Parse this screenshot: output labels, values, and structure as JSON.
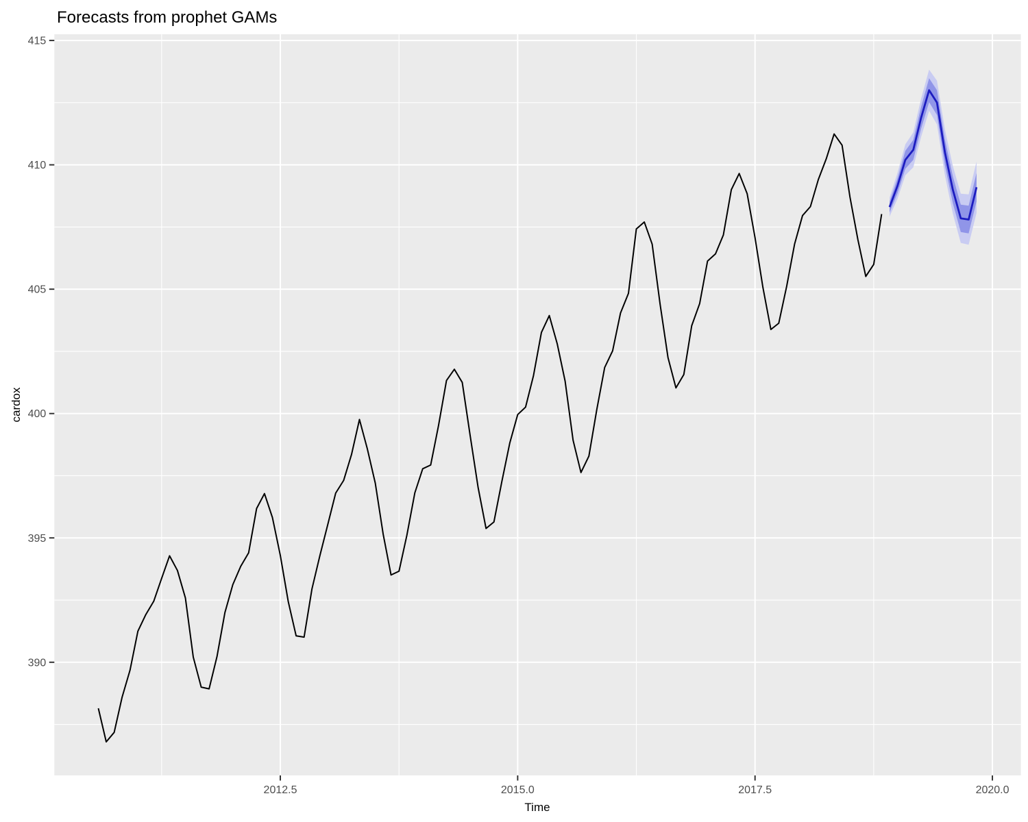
{
  "chart_data": {
    "type": "line",
    "title": "Forecasts from prophet GAMs",
    "xlabel": "Time",
    "ylabel": "cardox",
    "legend": "none",
    "grid": true,
    "xlim": [
      2010.12,
      2020.3
    ],
    "ylim": [
      385.45,
      415.25
    ],
    "x_ticks": {
      "values": [
        2012.5,
        2015.0,
        2017.5,
        2020.0
      ],
      "labels": [
        "2012.5",
        "2015.0",
        "2017.5",
        "2020.0"
      ],
      "minor": [
        2011.25,
        2013.75,
        2016.25,
        2018.75
      ]
    },
    "y_ticks": {
      "values": [
        390,
        395,
        400,
        405,
        410,
        415
      ],
      "labels": [
        "390",
        "395",
        "400",
        "405",
        "410",
        "415"
      ],
      "minor": [
        387.5,
        392.5,
        397.5,
        402.5,
        407.5,
        412.5
      ]
    },
    "series": [
      {
        "name": "observed",
        "kind": "line",
        "start_year": 2010,
        "start_month": 8,
        "frequency": 12,
        "values": [
          388.15,
          386.8,
          387.18,
          388.59,
          389.68,
          391.25,
          391.92,
          392.45,
          393.37,
          394.28,
          393.69,
          392.59,
          390.21,
          389.0,
          388.93,
          390.24,
          392.0,
          393.12,
          393.86,
          394.4,
          396.18,
          396.78,
          395.82,
          394.3,
          392.44,
          391.06,
          391.01,
          392.95,
          394.28,
          395.54,
          396.8,
          397.31,
          398.35,
          399.76,
          398.58,
          397.2,
          395.15,
          393.51,
          393.66,
          395.11,
          396.81,
          397.78,
          397.93,
          399.52,
          401.33,
          401.78,
          401.25,
          399.1,
          397.03,
          395.38,
          395.64,
          397.27,
          398.81,
          399.96,
          400.26,
          401.52,
          403.26,
          403.94,
          402.8,
          401.3,
          398.93,
          397.63,
          398.29,
          400.16,
          401.85,
          402.52,
          404.04,
          404.83,
          407.42,
          407.7,
          406.81,
          404.39,
          402.25,
          401.03,
          401.57,
          403.53,
          404.42,
          406.13,
          406.42,
          407.18,
          409.0,
          409.65,
          408.84,
          407.07,
          405.07,
          403.38,
          403.63,
          405.12,
          406.81,
          407.96,
          408.32,
          409.41,
          410.24,
          411.24,
          410.79,
          408.71,
          406.99,
          405.51,
          406.0,
          408.02
        ]
      },
      {
        "name": "forecast",
        "kind": "line+ribbons",
        "start_year": 2018,
        "start_month": 12,
        "frequency": 12,
        "mean": [
          408.3,
          409.15,
          410.2,
          410.6,
          411.9,
          413.0,
          412.5,
          410.5,
          409.0,
          407.85,
          407.8,
          409.1
        ],
        "lo80": [
          408.08,
          408.85,
          409.84,
          410.2,
          411.46,
          412.52,
          412.0,
          409.98,
          408.46,
          407.3,
          407.24,
          408.53
        ],
        "hi80": [
          408.52,
          409.45,
          410.56,
          411.0,
          412.34,
          413.48,
          413.0,
          411.02,
          409.54,
          408.4,
          408.36,
          409.67
        ],
        "lo95": [
          407.92,
          408.63,
          409.58,
          409.9,
          411.13,
          412.17,
          411.62,
          409.58,
          408.04,
          406.86,
          406.79,
          408.07
        ],
        "hi95": [
          408.68,
          409.67,
          410.82,
          411.3,
          412.67,
          413.83,
          413.38,
          411.42,
          409.96,
          408.84,
          408.81,
          410.13
        ]
      }
    ],
    "colors": {
      "background": "#ffffff",
      "panel_bg": "#ebebeb",
      "grid": "#ffffff",
      "observed_line": "#000000",
      "forecast_line": "#1c1cc0",
      "ribbon80": "#9095e8",
      "ribbon95": "#c9ccf2",
      "tick_text": "#4d4d4d",
      "tick_mark": "#333333",
      "title_text": "#000000"
    }
  }
}
